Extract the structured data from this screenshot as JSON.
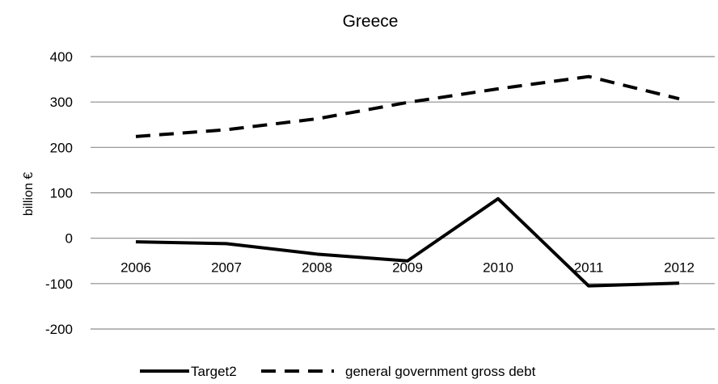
{
  "chart_data": {
    "type": "line",
    "title": "Greece",
    "ylabel": "billion €",
    "xlabel": "",
    "categories": [
      "2006",
      "2007",
      "2008",
      "2009",
      "2010",
      "2011",
      "2012"
    ],
    "ylim": [
      -200,
      400
    ],
    "yticks": [
      400,
      300,
      200,
      100,
      0,
      -100,
      -200
    ],
    "ytick_labels": [
      "400",
      "300",
      "200",
      "100",
      "0",
      "-100",
      "-200"
    ],
    "grid": true,
    "legend_position": "bottom",
    "series": [
      {
        "name": "Target2",
        "style": "solid",
        "color": "#000000",
        "values": [
          -8,
          -12,
          -35,
          -50,
          87,
          -105,
          -99
        ]
      },
      {
        "name": "general government gross debt",
        "style": "dashed",
        "color": "#000000",
        "values": [
          224,
          239,
          263,
          299,
          329,
          356,
          307
        ]
      }
    ]
  }
}
